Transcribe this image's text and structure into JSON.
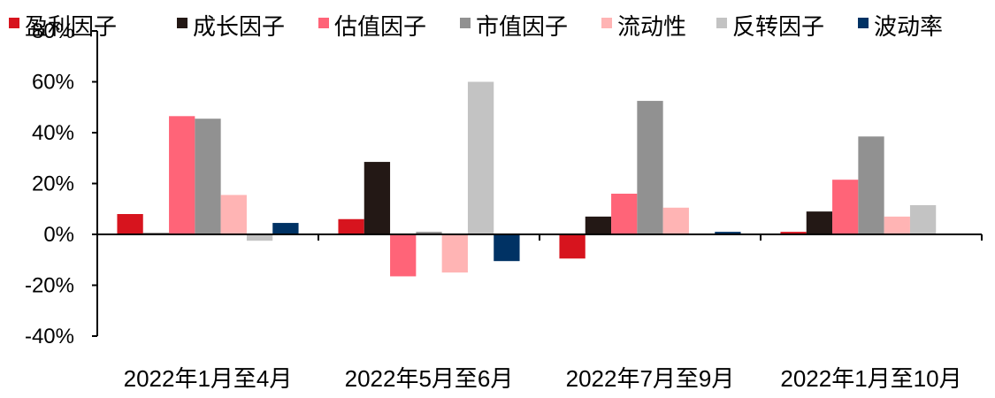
{
  "chart_data": {
    "type": "bar",
    "categories": [
      "2022年1月至4月",
      "2022年5月至6月",
      "2022年7月至9月",
      "2022年1月至10月"
    ],
    "series": [
      {
        "name": "盈利因子",
        "color": "#d7141e",
        "values": [
          8,
          6,
          -9.5,
          1
        ]
      },
      {
        "name": "成长因子",
        "color": "#231815",
        "values": [
          0.5,
          28.5,
          7,
          9
        ]
      },
      {
        "name": "估值因子",
        "color": "#ff6478",
        "values": [
          46.5,
          -16.5,
          16,
          21.5
        ]
      },
      {
        "name": "市值因子",
        "color": "#919191",
        "values": [
          45.5,
          1,
          52.5,
          38.5
        ]
      },
      {
        "name": "流动性",
        "color": "#ffb4b4",
        "values": [
          15.5,
          -15,
          10.5,
          7
        ]
      },
      {
        "name": "反转因子",
        "color": "#c3c3c3",
        "values": [
          -2.5,
          60,
          0,
          11.5
        ]
      },
      {
        "name": "波动率",
        "color": "#003264",
        "values": [
          4.5,
          -10.5,
          1,
          0
        ]
      }
    ],
    "ylim": [
      -40,
      80
    ],
    "yticks": [
      -40,
      -20,
      0,
      20,
      40,
      60,
      80
    ],
    "ytick_labels": [
      "-40%",
      "-20%",
      "0%",
      "20%",
      "40%",
      "60%",
      "80%"
    ],
    "legend_position": "top",
    "grid": false
  }
}
